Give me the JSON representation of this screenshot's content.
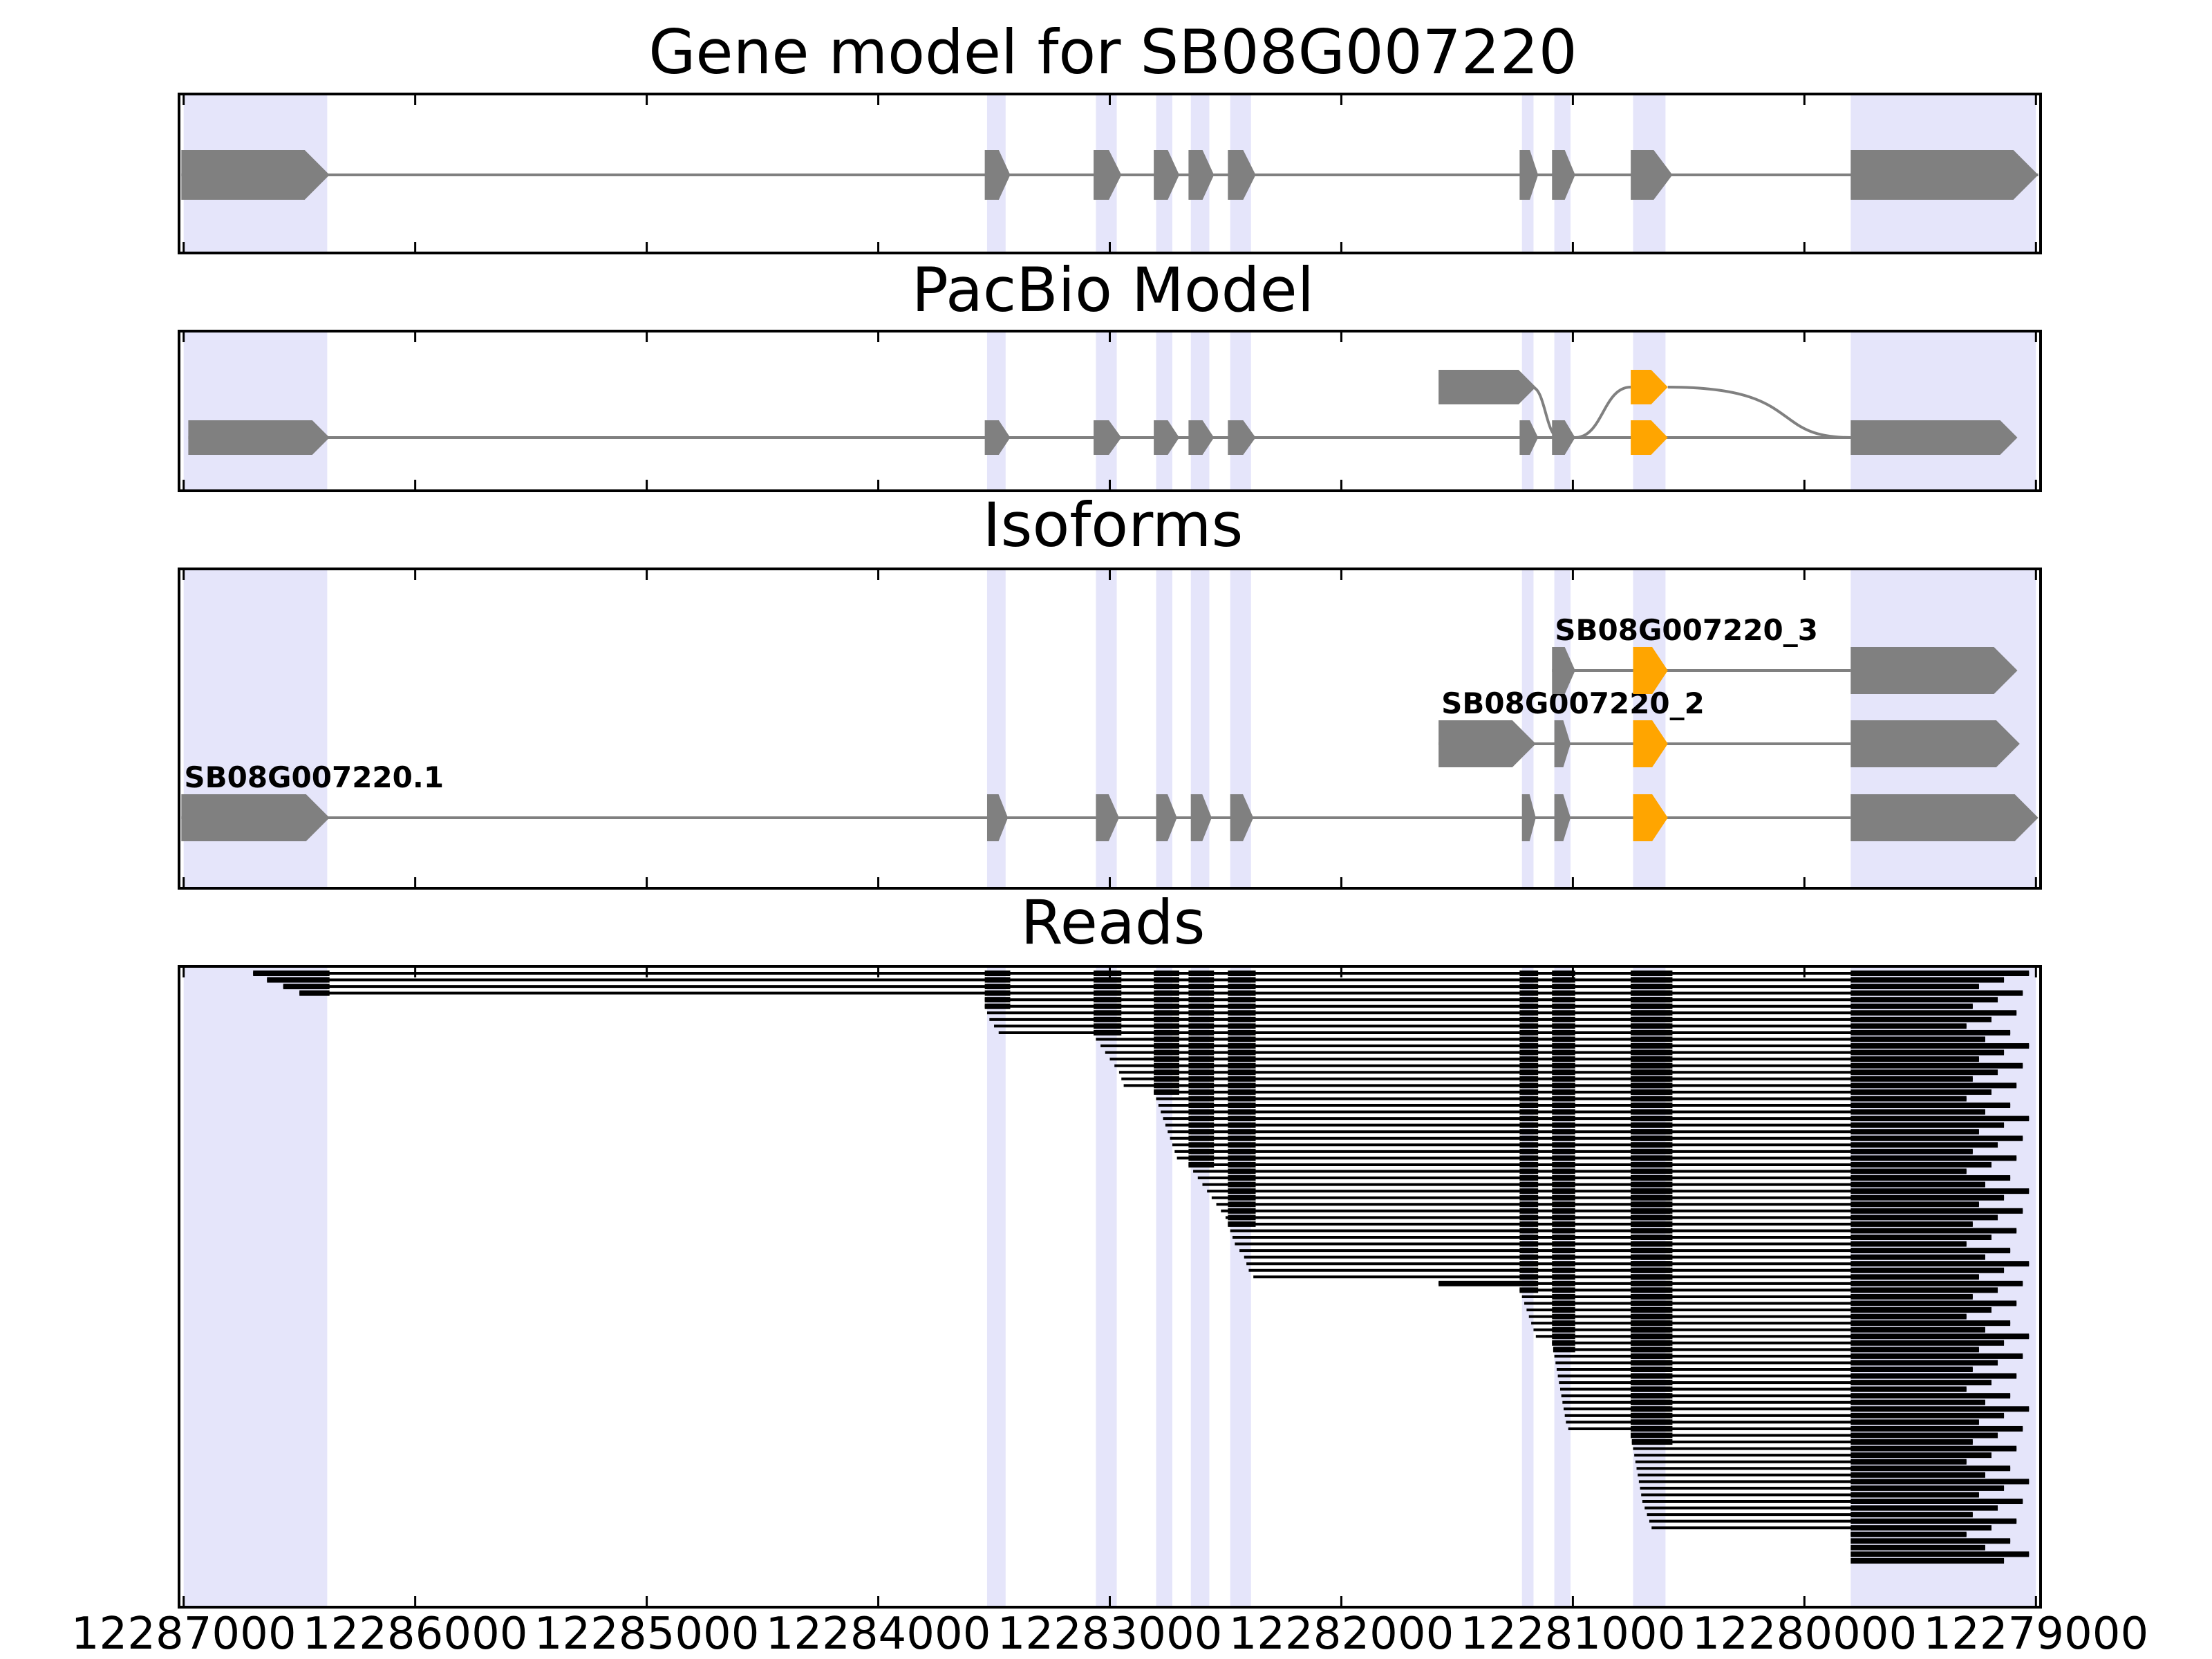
{
  "figure": {
    "panels": [
      {
        "id": "gene",
        "title": "Gene model for SB08G007220"
      },
      {
        "id": "pacbio",
        "title": "PacBio Model"
      },
      {
        "id": "isoforms",
        "title": "Isoforms"
      },
      {
        "id": "reads",
        "title": "Reads"
      }
    ],
    "colors": {
      "exon": "#808080",
      "intron": "#808080",
      "alt_exon": "#ffa500",
      "highlight": "#e5e5fa",
      "read": "#000000",
      "frame": "#000000"
    }
  },
  "chart_data": {
    "type": "gene-model",
    "gene_id": "SB08G007220",
    "x_axis": {
      "domain": [
        12287020,
        12278980
      ],
      "ticks": [
        "12287000",
        "12286000",
        "12285000",
        "12284000",
        "12283000",
        "12282000",
        "12281000",
        "12280000",
        "12279000"
      ],
      "direction": "descending"
    },
    "highlight_regions": [
      [
        12287000,
        12286380
      ],
      [
        12283530,
        12283450
      ],
      [
        12283060,
        12282970
      ],
      [
        12282800,
        12282730
      ],
      [
        12282650,
        12282570
      ],
      [
        12282480,
        12282390
      ],
      [
        12281220,
        12281170
      ],
      [
        12281080,
        12281010
      ],
      [
        12280740,
        12280600
      ],
      [
        12279800,
        12279000
      ]
    ],
    "gene_model": {
      "exons": [
        [
          12287010,
          12286370
        ],
        [
          12283540,
          12283430
        ],
        [
          12283070,
          12282950
        ],
        [
          12282810,
          12282700
        ],
        [
          12282660,
          12282550
        ],
        [
          12282490,
          12282370
        ],
        [
          12281230,
          12281150
        ],
        [
          12281090,
          12280990
        ],
        [
          12280750,
          12280570
        ],
        [
          12279800,
          12278990
        ]
      ]
    },
    "pacbio_model": {
      "main_exons": [
        [
          12286980,
          12286370
        ],
        [
          12283540,
          12283430
        ],
        [
          12283070,
          12282950
        ],
        [
          12282810,
          12282700
        ],
        [
          12282660,
          12282550
        ],
        [
          12282490,
          12282370
        ],
        [
          12281230,
          12281150
        ],
        [
          12281090,
          12280990
        ]
      ],
      "alt_exon_lower": [
        12280750,
        12280590
      ],
      "alt_exon_upper": [
        12280750,
        12280590
      ],
      "upstream_exon": [
        12281580,
        12281160
      ],
      "last_exon": [
        12279800,
        12279080
      ]
    },
    "isoforms": [
      {
        "name": "SB08G007220.1",
        "exons": [
          [
            12287010,
            12286370
          ],
          [
            12283530,
            12283440
          ],
          [
            12283060,
            12282960
          ],
          [
            12282800,
            12282710
          ],
          [
            12282650,
            12282560
          ],
          [
            12282480,
            12282380
          ],
          [
            12281220,
            12281160
          ],
          [
            12281080,
            12281010
          ]
        ],
        "alt_exon": [
          12280740,
          12280590
        ],
        "last_exon": [
          12279800,
          12278990
        ]
      },
      {
        "name": "SB08G007220_2",
        "exons": [
          [
            12281580,
            12281160
          ],
          [
            12281080,
            12281010
          ]
        ],
        "alt_exon": [
          12280740,
          12280590
        ],
        "last_exon": [
          12279800,
          12279070
        ]
      },
      {
        "name": "SB08G007220_3",
        "exons": [
          [
            12281090,
            12280990
          ]
        ],
        "alt_exon": [
          12280740,
          12280590
        ],
        "last_exon": [
          12279800,
          12279080
        ]
      }
    ],
    "reads": {
      "groups": [
        {
          "count": 4,
          "starts": [
            12286700,
            12286640,
            12286570,
            12286500
          ]
        },
        {
          "count": 6,
          "starts": [
            12283540,
            12283540,
            12283530,
            12283520,
            12283500,
            12283480
          ]
        },
        {
          "count": 8,
          "starts": [
            12283060,
            12283040,
            12283020,
            12283000,
            12282980,
            12282960,
            12282950,
            12282940
          ]
        },
        {
          "count": 11,
          "starts": [
            12282810,
            12282800,
            12282790,
            12282780,
            12282770,
            12282760,
            12282750,
            12282740,
            12282730,
            12282720,
            12282710
          ]
        },
        {
          "count": 9,
          "starts": [
            12282660,
            12282640,
            12282620,
            12282600,
            12282580,
            12282560,
            12282540,
            12282520,
            12282500
          ]
        },
        {
          "count": 9,
          "starts": [
            12282490,
            12282480,
            12282470,
            12282460,
            12282440,
            12282420,
            12282410,
            12282400,
            12282380
          ]
        },
        {
          "count": 1,
          "starts": [
            12281580
          ]
        },
        {
          "count": 8,
          "starts": [
            12281230,
            12281220,
            12281210,
            12281200,
            12281190,
            12281180,
            12281170,
            12281160
          ]
        },
        {
          "count": 14,
          "starts": [
            12281090,
            12281085,
            12281080,
            12281075,
            12281070,
            12281065,
            12281060,
            12281055,
            12281050,
            12281045,
            12281040,
            12281035,
            12281030,
            12281020
          ]
        },
        {
          "count": 15,
          "starts": [
            12280750,
            12280745,
            12280740,
            12280735,
            12280730,
            12280725,
            12280720,
            12280715,
            12280710,
            12280705,
            12280700,
            12280690,
            12280680,
            12280670,
            12280660
          ]
        },
        {
          "count": 5,
          "starts": [
            12279800,
            12279780,
            12279760,
            12279740,
            12279720
          ]
        }
      ],
      "end_range": [
        12279030,
        12279300
      ]
    }
  }
}
